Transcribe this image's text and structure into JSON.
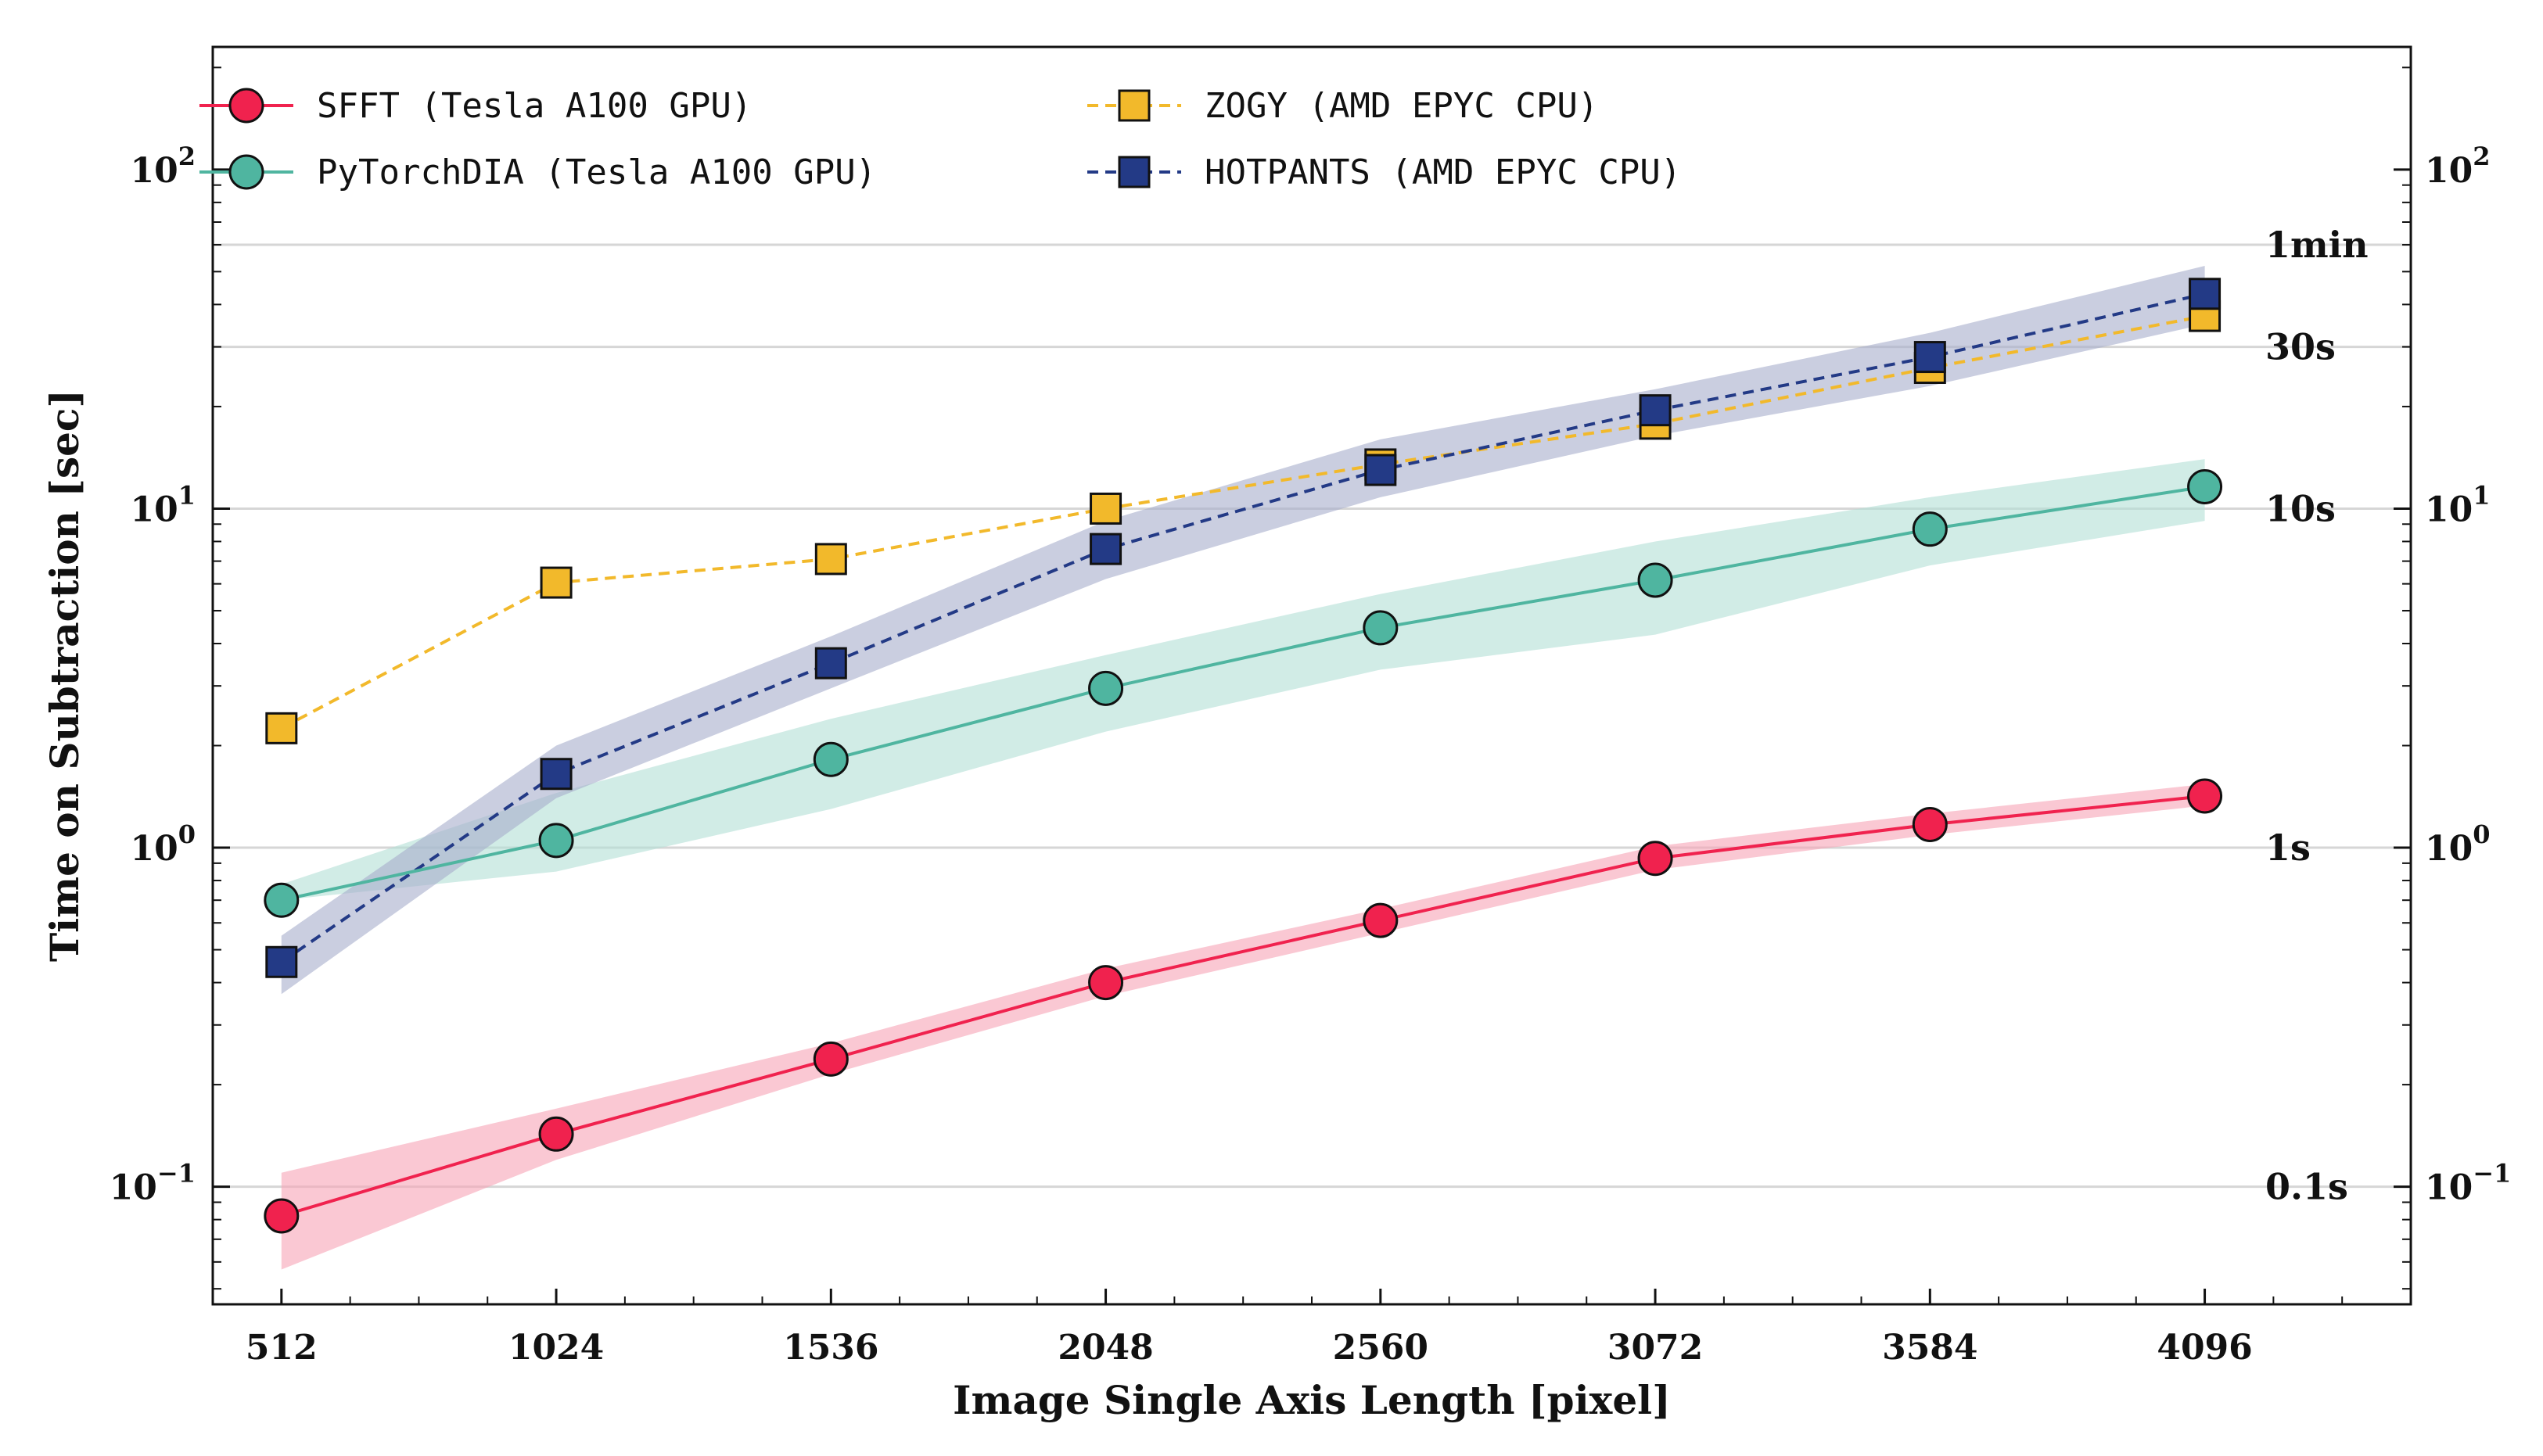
{
  "chart_data": {
    "type": "line",
    "title": "",
    "xlabel": "Image Single Axis Length [pixel]",
    "ylabel": "Time on Subtraction [sec]",
    "x_scale": "linear",
    "y_scale": "log",
    "xlim": [
      384,
      4480
    ],
    "ylim": [
      0.045,
      230
    ],
    "x": [
      512,
      1024,
      1536,
      2048,
      2560,
      3072,
      3584,
      4096
    ],
    "x_tick_labels": [
      "512",
      "1024",
      "1536",
      "2048",
      "2560",
      "3072",
      "3584",
      "4096"
    ],
    "y_ticks": [
      0.1,
      1,
      10,
      100
    ],
    "y_tick_labels": [
      {
        "base": "10",
        "exp": "−1"
      },
      {
        "base": "10",
        "exp": "0"
      },
      {
        "base": "10",
        "exp": "1"
      },
      {
        "base": "10",
        "exp": "2"
      }
    ],
    "reference_lines": [
      {
        "value": 0.1,
        "label": "0.1s"
      },
      {
        "value": 1,
        "label": "1s"
      },
      {
        "value": 10,
        "label": "10s"
      },
      {
        "value": 30,
        "label": "30s"
      },
      {
        "value": 60,
        "label": "1min"
      }
    ],
    "grid": "horizontal reference lines only",
    "legend_position": "top-left, two columns",
    "series": [
      {
        "name": "SFFT (Tesla A100 GPU)",
        "color": "#f0224e",
        "band_color": "#f7a3b6",
        "line_style": "solid",
        "marker": "circle",
        "values": [
          0.082,
          0.143,
          0.238,
          0.4,
          0.61,
          0.93,
          1.17,
          1.42
        ],
        "band_low": [
          0.057,
          0.12,
          0.215,
          0.365,
          0.56,
          0.86,
          1.09,
          1.33
        ],
        "band_high": [
          0.11,
          0.17,
          0.265,
          0.44,
          0.66,
          1.01,
          1.26,
          1.54
        ]
      },
      {
        "name": "PyTorchDIA (Tesla A100 GPU)",
        "color": "#4fb5a0",
        "band_color": "#b2e0d6",
        "line_style": "solid",
        "marker": "circle",
        "values": [
          0.7,
          1.05,
          1.82,
          2.95,
          4.45,
          6.15,
          8.7,
          11.6
        ],
        "band_low": [
          0.7,
          0.85,
          1.3,
          2.2,
          3.35,
          4.25,
          6.8,
          9.2
        ],
        "band_high": [
          0.78,
          1.45,
          2.4,
          3.7,
          5.6,
          8.0,
          10.8,
          14.0
        ]
      },
      {
        "name": "ZOGY (AMD EPYC CPU)",
        "color": "#f2b92b",
        "band_color": null,
        "line_style": "dashed",
        "marker": "square",
        "values": [
          2.25,
          6.05,
          7.1,
          10.0,
          13.5,
          17.8,
          26.0,
          37.0
        ]
      },
      {
        "name": "HOTPANTS (AMD EPYC CPU)",
        "color": "#233a86",
        "band_color": "#a7adcc",
        "line_style": "dashed",
        "marker": "square",
        "values": [
          0.46,
          1.65,
          3.5,
          7.6,
          13.0,
          19.5,
          28.0,
          43.0
        ],
        "band_low": [
          0.37,
          1.4,
          2.95,
          6.2,
          10.8,
          16.4,
          23.0,
          35.0
        ],
        "band_high": [
          0.55,
          2.0,
          4.2,
          9.2,
          16.0,
          22.5,
          33.0,
          52.0
        ]
      }
    ]
  }
}
